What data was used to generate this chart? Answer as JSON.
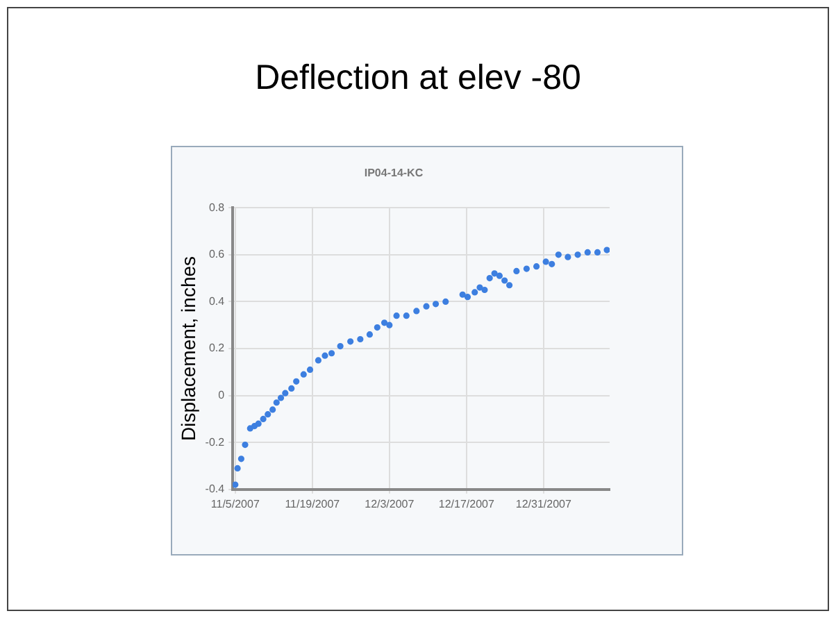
{
  "chart_data": {
    "type": "scatter",
    "title": "Deflection at elev -80",
    "subtitle": "IP04-14-KC",
    "ylabel": "Displacement, inches",
    "x": [
      "2007-11-05",
      "2007-11-05T10:00",
      "2007-11-06T02:00",
      "2007-11-06T19:00",
      "2007-11-07T17:00",
      "2007-11-08T12:00",
      "2007-11-09T05:00",
      "2007-11-10T02:00",
      "2007-11-10T22:00",
      "2007-11-11T19:00",
      "2007-11-12T12:00",
      "2007-11-13T07:00",
      "2007-11-14T02:00",
      "2007-11-15T05:00",
      "2007-11-16T02:00",
      "2007-11-17T10:00",
      "2007-11-18T14:00",
      "2007-11-20T02:00",
      "2007-11-21T07:00",
      "2007-11-22T12:00",
      "2007-11-24T02:00",
      "2007-11-25T22:00",
      "2007-11-27T17:00",
      "2007-11-29T10:00",
      "2007-11-30T19:00",
      "2007-12-02T02:00",
      "2007-12-03",
      "2007-12-04T07:00",
      "2007-12-06T02:00",
      "2007-12-07T22:00",
      "2007-12-09T17:00",
      "2007-12-11T10:00",
      "2007-12-13T05:00",
      "2007-12-16T07:00",
      "2007-12-17T05:00",
      "2007-12-18T12:00",
      "2007-12-19T10:00",
      "2007-12-20T07:00",
      "2007-12-21T05:00",
      "2007-12-22T02:00",
      "2007-12-23",
      "2007-12-23T22:00",
      "2007-12-24T19:00",
      "2007-12-26T02:00",
      "2007-12-27T22:00",
      "2007-12-29T17:00",
      "2007-12-31T10:00",
      "2008-01-01T12:00",
      "2008-01-02T17:00",
      "2008-01-04T10:00",
      "2008-01-06T05:00",
      "2008-01-08",
      "2008-01-09T19:00",
      "2008-01-11T12:00"
    ],
    "series": [
      {
        "color": "#3d7fe0",
        "values": [
          -0.38,
          -0.31,
          -0.27,
          -0.21,
          -0.14,
          -0.13,
          -0.12,
          -0.1,
          -0.08,
          -0.06,
          -0.03,
          -0.01,
          0.01,
          0.03,
          0.06,
          0.09,
          0.11,
          0.15,
          0.17,
          0.18,
          0.21,
          0.23,
          0.24,
          0.26,
          0.29,
          0.31,
          0.3,
          0.34,
          0.34,
          0.36,
          0.38,
          0.39,
          0.4,
          0.43,
          0.42,
          0.44,
          0.46,
          0.45,
          0.5,
          0.52,
          0.51,
          0.49,
          0.47,
          0.53,
          0.54,
          0.55,
          0.57,
          0.56,
          0.6,
          0.59,
          0.6,
          0.61,
          0.61,
          0.62
        ]
      }
    ],
    "xlim": [
      "2007-11-04T13:00",
      "2008-01-12"
    ],
    "xticks": [
      {
        "value": "2007-11-05",
        "label": "11/5/2007"
      },
      {
        "value": "2007-11-19",
        "label": "11/19/2007"
      },
      {
        "value": "2007-12-03",
        "label": "12/3/2007"
      },
      {
        "value": "2007-12-17",
        "label": "12/17/2007"
      },
      {
        "value": "2007-12-31",
        "label": "12/31/2007"
      }
    ],
    "ylim": [
      -0.4,
      0.8
    ],
    "yticks": [
      -0.4,
      -0.2,
      0,
      0.2,
      0.4,
      0.6,
      0.8
    ],
    "grid": true,
    "legend": false,
    "marker": "circle"
  }
}
